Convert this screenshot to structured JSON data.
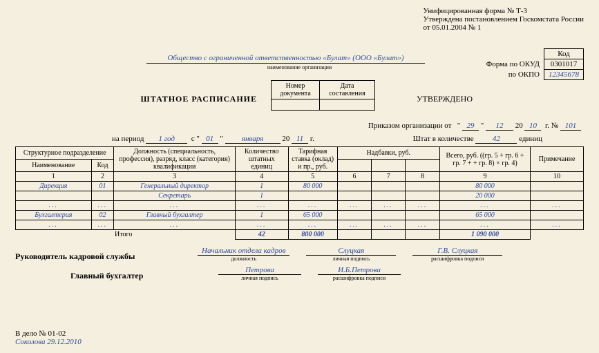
{
  "header": {
    "form_line1": "Унифицированная форма № Т-3",
    "form_line2": "Утверждена постановлением Госкомстата России",
    "form_line3": "от 05.01.2004 № 1"
  },
  "okud": {
    "kod_label": "Код",
    "okud_label": "Форма по ОКУД",
    "okud_value": "0301017",
    "okpo_label": "по ОКПО",
    "okpo_value": "12345678"
  },
  "org": {
    "name": "Общество с ограниченной ответственностью «Булат» (ООО «Булат»)",
    "caption": "наименование организации"
  },
  "docbox": {
    "num_label": "Номер документа",
    "date_label": "Дата составления",
    "num_value": "",
    "date_value": ""
  },
  "title": "ШТАТНОЕ РАСПИСАНИЕ",
  "approved": "УТВЕРЖДЕНО",
  "order": {
    "prefix": "Приказом организации от",
    "q1": "\"",
    "day": "29",
    "q2": "\"",
    "month": "12",
    "year_prefix": "20",
    "year": "10",
    "g": "г.  №",
    "num": "101"
  },
  "period": {
    "prefix": "на период",
    "value": "1 год",
    "s": "с  \"",
    "day": "01",
    "q2": "\"",
    "month": "января",
    "year_prefix": "20",
    "year": "11",
    "g": "г."
  },
  "count": {
    "prefix": "Штат в количестве",
    "value": "42",
    "suffix": "единиц"
  },
  "table": {
    "headers": {
      "struct": "Структурное подразделение",
      "name": "Наименование",
      "code": "Код",
      "position": "Должность (специальность, профессия), разряд, класс (категория) квалификации",
      "units": "Количество штатных единиц",
      "rate": "Тарифная ставка (оклад) и пр., руб.",
      "allowances": "Надбавки, руб.",
      "total": "Всего, руб. ((гр. 5 + гр. 6 + гр. 7 + + гр. 8) × гр. 4)",
      "note": "Примечание"
    },
    "colnums": [
      "1",
      "2",
      "3",
      "4",
      "5",
      "6",
      "7",
      "8",
      "9",
      "10"
    ],
    "rows": [
      {
        "c1": "Дирекция",
        "c2": "01",
        "c3": "Генеральный директор",
        "c4": "1",
        "c5": "80 000",
        "c6": "",
        "c7": "",
        "c8": "",
        "c9": "80 000",
        "c10": ""
      },
      {
        "c1": "",
        "c2": "",
        "c3": "Секретарь",
        "c4": "1",
        "c5": "",
        "c6": "",
        "c7": "",
        "c8": "",
        "c9": "20 000",
        "c10": ""
      },
      {
        "c1": "...",
        "c2": "...",
        "c3": "...",
        "c4": "...",
        "c5": "...",
        "c6": "...",
        "c7": "...",
        "c8": "...",
        "c9": "...",
        "c10": "..."
      },
      {
        "c1": "Бухгалтерия",
        "c2": "02",
        "c3": "Главный бухгалтер",
        "c4": "1",
        "c5": "65 000",
        "c6": "",
        "c7": "",
        "c8": "",
        "c9": "65 000",
        "c10": ""
      },
      {
        "c1": "...",
        "c2": "...",
        "c3": "...",
        "c4": "...",
        "c5": "...",
        "c6": "...",
        "c7": "...",
        "c8": "...",
        "c9": "...",
        "c10": "..."
      }
    ],
    "total_label": "Итого",
    "total": {
      "c4": "42",
      "c5": "800 000",
      "c6": "",
      "c7": "",
      "c8": "",
      "c9": "1 090 000",
      "c10": ""
    }
  },
  "signatures": {
    "hr_label": "Руководитель кадровой службы",
    "hr_position": "Начальник отдела кадров",
    "hr_pos_cap": "должность",
    "hr_sign": "Слуцкая",
    "sign_cap": "личная подпись",
    "hr_decode": "Г.В. Слуцкая",
    "decode_cap": "расшифровка подписи",
    "acc_label": "Главный бухгалтер",
    "acc_sign": "Петрова",
    "acc_decode": "И.Б.Петрова"
  },
  "footer": {
    "line1": "В дело № 01-02",
    "line2": "Соколова 29.12.2010"
  }
}
